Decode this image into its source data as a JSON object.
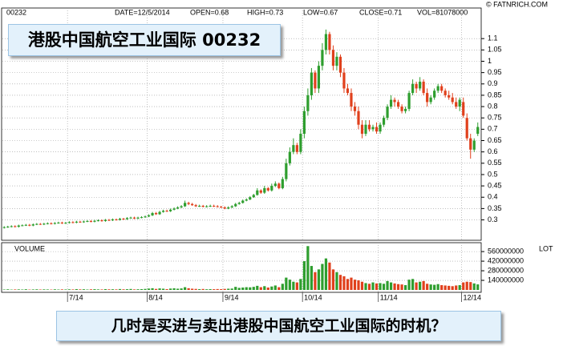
{
  "chart_data": {
    "type": "candlestick",
    "title": "港股中国航空工业国际 00232",
    "symbol": "00232",
    "info": [
      "DATE=12/5/2014",
      "OPEN=0.68",
      "HIGH=0.73",
      "LOW=0.67",
      "CLOSE=0.71",
      "VOL=81078000"
    ],
    "source": "© FATNRICH.COM",
    "volume_label": "VOLUME",
    "volume_unit": "LOT",
    "question": "几时是买进与卖出港股中国航空工业国际的时机？",
    "up_color": "#2e9e2e",
    "down_color": "#e0401c",
    "grid": true,
    "categories": [
      null,
      null,
      null,
      null,
      null,
      null,
      null,
      null,
      null,
      null,
      null,
      null,
      null,
      null,
      null,
      null,
      null,
      null,
      "7/14",
      null,
      null,
      null,
      null,
      null,
      null,
      null,
      null,
      null,
      null,
      null,
      null,
      null,
      null,
      null,
      null,
      null,
      null,
      null,
      null,
      null,
      "8/14",
      null,
      null,
      null,
      null,
      null,
      null,
      null,
      null,
      null,
      null,
      null,
      null,
      null,
      null,
      null,
      null,
      null,
      null,
      null,
      null,
      "9/14",
      null,
      null,
      null,
      null,
      null,
      null,
      null,
      null,
      null,
      null,
      null,
      null,
      null,
      null,
      null,
      null,
      null,
      null,
      null,
      null,
      null,
      "10/14",
      null,
      null,
      null,
      null,
      null,
      null,
      null,
      null,
      null,
      null,
      null,
      null,
      null,
      null,
      null,
      null,
      null,
      null,
      null,
      null,
      "11/14",
      null,
      null,
      null,
      null,
      null,
      null,
      null,
      null,
      null,
      null,
      null,
      null,
      null,
      null,
      null,
      null,
      null,
      null,
      null,
      null,
      null,
      null,
      "12/14",
      null,
      null,
      null,
      null
    ],
    "open": [
      0.265,
      0.268,
      0.27,
      0.272,
      0.27,
      0.275,
      0.276,
      0.278,
      0.275,
      0.28,
      0.282,
      0.28,
      0.283,
      0.285,
      0.283,
      0.286,
      0.288,
      0.285,
      0.287,
      0.29,
      0.288,
      0.292,
      0.29,
      0.293,
      0.295,
      0.292,
      0.296,
      0.298,
      0.295,
      0.3,
      0.298,
      0.302,
      0.3,
      0.305,
      0.303,
      0.308,
      0.31,
      0.306,
      0.31,
      0.312,
      0.315,
      0.32,
      0.33,
      0.325,
      0.335,
      0.34,
      0.338,
      0.345,
      0.35,
      0.355,
      0.36,
      0.375,
      0.37,
      0.365,
      0.36,
      0.362,
      0.358,
      0.36,
      0.362,
      0.36,
      0.358,
      0.355,
      0.35,
      0.355,
      0.36,
      0.37,
      0.375,
      0.385,
      0.39,
      0.4,
      0.41,
      0.43,
      0.42,
      0.44,
      0.43,
      0.45,
      0.46,
      0.44,
      0.48,
      0.55,
      0.6,
      0.63,
      0.6,
      0.68,
      0.78,
      0.85,
      0.95,
      0.88,
      0.98,
      1.05,
      1.12,
      1.05,
      0.98,
      1.02,
      0.95,
      0.88,
      0.86,
      0.8,
      0.78,
      0.72,
      0.68,
      0.72,
      0.7,
      0.71,
      0.69,
      0.72,
      0.75,
      0.8,
      0.83,
      0.82,
      0.8,
      0.78,
      0.79,
      0.86,
      0.9,
      0.88,
      0.91,
      0.86,
      0.82,
      0.84,
      0.87,
      0.89,
      0.87,
      0.85,
      0.84,
      0.82,
      0.8,
      0.82,
      0.75,
      0.66,
      0.61,
      0.68
    ],
    "high": [
      0.272,
      0.274,
      0.276,
      0.276,
      0.279,
      0.28,
      0.282,
      0.282,
      0.284,
      0.286,
      0.286,
      0.287,
      0.289,
      0.289,
      0.29,
      0.292,
      0.292,
      0.291,
      0.294,
      0.294,
      0.296,
      0.296,
      0.297,
      0.299,
      0.299,
      0.3,
      0.302,
      0.302,
      0.304,
      0.304,
      0.306,
      0.306,
      0.309,
      0.309,
      0.312,
      0.314,
      0.314,
      0.314,
      0.316,
      0.319,
      0.325,
      0.335,
      0.335,
      0.34,
      0.345,
      0.345,
      0.35,
      0.355,
      0.36,
      0.365,
      0.385,
      0.38,
      0.375,
      0.37,
      0.367,
      0.366,
      0.365,
      0.367,
      0.367,
      0.365,
      0.362,
      0.36,
      0.36,
      0.365,
      0.375,
      0.38,
      0.39,
      0.395,
      0.405,
      0.415,
      0.44,
      0.435,
      0.45,
      0.445,
      0.46,
      0.47,
      0.465,
      0.49,
      0.57,
      0.62,
      0.66,
      0.64,
      0.7,
      0.8,
      0.88,
      0.97,
      0.96,
      1.0,
      1.08,
      1.14,
      1.13,
      1.07,
      1.04,
      1.03,
      0.97,
      0.9,
      0.88,
      0.82,
      0.8,
      0.74,
      0.74,
      0.74,
      0.72,
      0.73,
      0.73,
      0.76,
      0.81,
      0.85,
      0.84,
      0.83,
      0.81,
      0.8,
      0.87,
      0.92,
      0.91,
      0.93,
      0.92,
      0.88,
      0.85,
      0.88,
      0.9,
      0.9,
      0.88,
      0.87,
      0.86,
      0.84,
      0.84,
      0.84,
      0.77,
      0.68,
      0.66,
      0.73
    ],
    "low": [
      0.262,
      0.265,
      0.267,
      0.267,
      0.266,
      0.272,
      0.273,
      0.272,
      0.272,
      0.277,
      0.278,
      0.277,
      0.28,
      0.28,
      0.28,
      0.283,
      0.282,
      0.282,
      0.284,
      0.285,
      0.285,
      0.287,
      0.287,
      0.29,
      0.289,
      0.289,
      0.293,
      0.292,
      0.292,
      0.295,
      0.295,
      0.297,
      0.297,
      0.3,
      0.3,
      0.305,
      0.303,
      0.303,
      0.307,
      0.309,
      0.312,
      0.317,
      0.322,
      0.322,
      0.332,
      0.335,
      0.335,
      0.342,
      0.347,
      0.352,
      0.357,
      0.365,
      0.362,
      0.357,
      0.357,
      0.355,
      0.355,
      0.357,
      0.357,
      0.355,
      0.352,
      0.347,
      0.347,
      0.352,
      0.357,
      0.367,
      0.372,
      0.382,
      0.387,
      0.397,
      0.407,
      0.415,
      0.415,
      0.425,
      0.425,
      0.445,
      0.435,
      0.435,
      0.47,
      0.54,
      0.59,
      0.59,
      0.59,
      0.66,
      0.76,
      0.83,
      0.86,
      0.86,
      0.96,
      1.03,
      1.03,
      0.96,
      0.96,
      0.93,
      0.86,
      0.85,
      0.78,
      0.76,
      0.7,
      0.66,
      0.67,
      0.69,
      0.69,
      0.68,
      0.68,
      0.71,
      0.74,
      0.79,
      0.8,
      0.79,
      0.77,
      0.77,
      0.78,
      0.85,
      0.86,
      0.87,
      0.85,
      0.8,
      0.81,
      0.83,
      0.86,
      0.86,
      0.84,
      0.83,
      0.81,
      0.79,
      0.78,
      0.75,
      0.65,
      0.57,
      0.6,
      0.67
    ],
    "close": [
      0.268,
      0.27,
      0.272,
      0.27,
      0.275,
      0.276,
      0.278,
      0.275,
      0.28,
      0.282,
      0.28,
      0.283,
      0.285,
      0.283,
      0.286,
      0.288,
      0.285,
      0.287,
      0.29,
      0.288,
      0.292,
      0.29,
      0.293,
      0.295,
      0.292,
      0.296,
      0.298,
      0.295,
      0.3,
      0.298,
      0.302,
      0.3,
      0.305,
      0.303,
      0.308,
      0.31,
      0.306,
      0.31,
      0.312,
      0.315,
      0.32,
      0.33,
      0.325,
      0.335,
      0.34,
      0.338,
      0.345,
      0.35,
      0.355,
      0.36,
      0.375,
      0.37,
      0.365,
      0.36,
      0.362,
      0.358,
      0.36,
      0.362,
      0.36,
      0.358,
      0.355,
      0.35,
      0.355,
      0.36,
      0.37,
      0.375,
      0.385,
      0.39,
      0.4,
      0.41,
      0.43,
      0.42,
      0.44,
      0.43,
      0.45,
      0.46,
      0.44,
      0.48,
      0.55,
      0.6,
      0.63,
      0.6,
      0.68,
      0.78,
      0.85,
      0.95,
      0.88,
      0.98,
      1.05,
      1.12,
      1.05,
      0.98,
      1.02,
      0.95,
      0.88,
      0.86,
      0.8,
      0.78,
      0.72,
      0.68,
      0.72,
      0.7,
      0.71,
      0.69,
      0.72,
      0.75,
      0.8,
      0.83,
      0.82,
      0.8,
      0.78,
      0.79,
      0.86,
      0.9,
      0.88,
      0.91,
      0.86,
      0.82,
      0.84,
      0.87,
      0.89,
      0.87,
      0.85,
      0.84,
      0.82,
      0.8,
      0.83,
      0.76,
      0.66,
      0.61,
      0.65,
      0.71
    ],
    "volume": [
      6000000,
      9000000,
      5000000,
      7000000,
      8000000,
      6000000,
      10000000,
      5000000,
      7000000,
      9000000,
      6000000,
      8000000,
      7000000,
      5000000,
      9000000,
      6000000,
      8000000,
      7000000,
      9000000,
      7000000,
      12000000,
      8000000,
      10000000,
      6000000,
      9000000,
      11000000,
      8000000,
      7000000,
      12000000,
      9000000,
      10000000,
      8000000,
      13000000,
      9000000,
      11000000,
      14000000,
      8000000,
      10000000,
      12000000,
      15000000,
      20000000,
      25000000,
      15000000,
      22000000,
      18000000,
      12000000,
      20000000,
      24000000,
      18000000,
      22000000,
      40000000,
      25000000,
      18000000,
      15000000,
      12000000,
      14000000,
      10000000,
      12000000,
      11000000,
      13000000,
      12000000,
      15000000,
      18000000,
      20000000,
      45000000,
      30000000,
      35000000,
      40000000,
      38000000,
      45000000,
      60000000,
      40000000,
      55000000,
      35000000,
      50000000,
      65000000,
      40000000,
      90000000,
      180000000,
      150000000,
      120000000,
      110000000,
      160000000,
      420000000,
      640000000,
      350000000,
      260000000,
      300000000,
      380000000,
      460000000,
      400000000,
      300000000,
      260000000,
      220000000,
      200000000,
      160000000,
      180000000,
      150000000,
      140000000,
      120000000,
      100000000,
      90000000,
      110000000,
      95000000,
      100000000,
      90000000,
      130000000,
      110000000,
      95000000,
      85000000,
      80000000,
      70000000,
      150000000,
      160000000,
      110000000,
      120000000,
      130000000,
      90000000,
      80000000,
      75000000,
      85000000,
      70000000,
      65000000,
      60000000,
      55000000,
      65000000,
      70000000,
      110000000,
      120000000,
      115000000,
      95000000,
      81078000
    ],
    "ylim": [
      0.21,
      1.235
    ],
    "yticks": [
      0.3,
      0.35,
      0.4,
      0.45,
      0.5,
      0.55,
      0.6,
      0.65,
      0.7,
      0.75,
      0.8,
      0.85,
      0.9,
      0.95,
      1,
      1.05,
      1.1
    ],
    "volume_ylim": [
      0,
      690000000
    ],
    "volume_ticks": [
      140000000,
      280000000,
      420000000,
      560000000
    ]
  }
}
